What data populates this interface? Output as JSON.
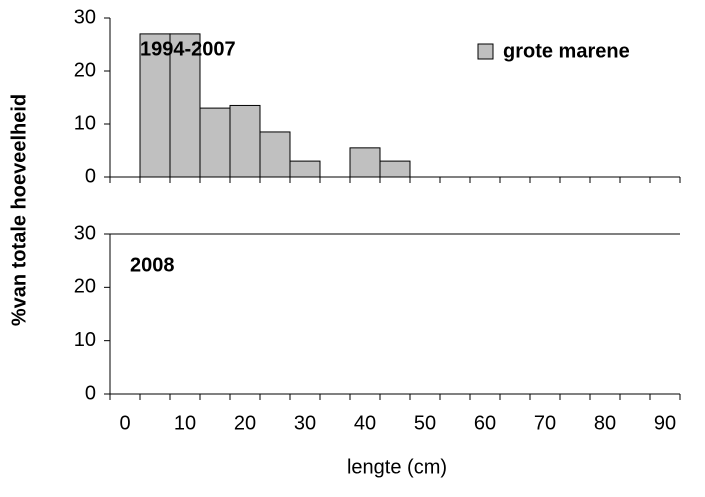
{
  "chart_data": [
    {
      "type": "bar",
      "annotation": "1994-2007",
      "ylabel": "%van totale hoeveelheid",
      "series": [
        {
          "name": "grote marene",
          "color": "#c0c0c0",
          "values": [
            0,
            27,
            27,
            13,
            13.5,
            8.5,
            3,
            0,
            5.5,
            3,
            0,
            0,
            0,
            0,
            0,
            0,
            0,
            0,
            0
          ]
        }
      ],
      "ylim": [
        0,
        30
      ],
      "yticks": [
        0,
        10,
        20,
        30
      ],
      "legend": "upper right"
    },
    {
      "type": "bar",
      "annotation": "2008",
      "xlabel": "lengte (cm)",
      "categories": [
        "0",
        null,
        "10",
        null,
        "20",
        null,
        "30",
        null,
        "40",
        null,
        "50",
        null,
        "60",
        null,
        "70",
        null,
        "80",
        null,
        "90"
      ],
      "series": [
        {
          "name": "grote marene",
          "color": "#c0c0c0",
          "values": [
            0,
            0,
            0,
            0,
            0,
            0,
            0,
            0,
            0,
            0,
            0,
            0,
            0,
            0,
            0,
            0,
            0,
            0,
            0
          ]
        }
      ],
      "ylim": [
        0,
        30
      ],
      "yticks": [
        0,
        10,
        20,
        30
      ]
    }
  ]
}
